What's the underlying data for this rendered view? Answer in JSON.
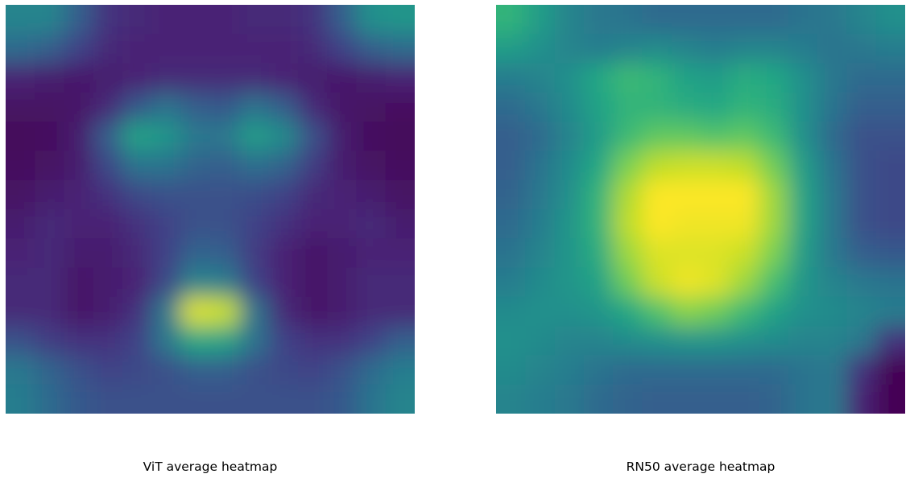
{
  "chart_data": [
    {
      "type": "heatmap",
      "title": "ViT average heatmap",
      "colormap": "viridis",
      "grid": false,
      "axes": "off",
      "rows": 14,
      "cols": 14,
      "values": [
        [
          0.45,
          0.45,
          0.3,
          0.15,
          0.12,
          0.1,
          0.1,
          0.1,
          0.12,
          0.12,
          0.15,
          0.3,
          0.5,
          0.52
        ],
        [
          0.35,
          0.3,
          0.2,
          0.12,
          0.1,
          0.1,
          0.1,
          0.1,
          0.1,
          0.1,
          0.12,
          0.2,
          0.3,
          0.35
        ],
        [
          0.1,
          0.08,
          0.07,
          0.08,
          0.1,
          0.12,
          0.12,
          0.12,
          0.12,
          0.1,
          0.08,
          0.07,
          0.08,
          0.1
        ],
        [
          0.05,
          0.05,
          0.06,
          0.12,
          0.28,
          0.38,
          0.3,
          0.28,
          0.38,
          0.3,
          0.12,
          0.06,
          0.05,
          0.04
        ],
        [
          0.02,
          0.03,
          0.08,
          0.3,
          0.58,
          0.52,
          0.4,
          0.4,
          0.55,
          0.48,
          0.25,
          0.08,
          0.03,
          0.02
        ],
        [
          0.03,
          0.05,
          0.08,
          0.22,
          0.38,
          0.38,
          0.32,
          0.3,
          0.36,
          0.32,
          0.18,
          0.08,
          0.05,
          0.03
        ],
        [
          0.05,
          0.08,
          0.1,
          0.15,
          0.22,
          0.25,
          0.25,
          0.25,
          0.24,
          0.2,
          0.12,
          0.1,
          0.08,
          0.05
        ],
        [
          0.08,
          0.12,
          0.1,
          0.1,
          0.15,
          0.2,
          0.25,
          0.25,
          0.2,
          0.15,
          0.1,
          0.1,
          0.12,
          0.08
        ],
        [
          0.1,
          0.12,
          0.08,
          0.08,
          0.12,
          0.2,
          0.32,
          0.3,
          0.18,
          0.1,
          0.06,
          0.08,
          0.1,
          0.1
        ],
        [
          0.12,
          0.12,
          0.06,
          0.08,
          0.1,
          0.22,
          0.45,
          0.42,
          0.2,
          0.1,
          0.06,
          0.08,
          0.12,
          0.12
        ],
        [
          0.12,
          0.12,
          0.06,
          0.08,
          0.15,
          0.4,
          0.95,
          0.92,
          0.38,
          0.12,
          0.06,
          0.08,
          0.12,
          0.12
        ],
        [
          0.25,
          0.18,
          0.15,
          0.15,
          0.2,
          0.4,
          0.6,
          0.58,
          0.38,
          0.2,
          0.15,
          0.15,
          0.2,
          0.3
        ],
        [
          0.4,
          0.32,
          0.25,
          0.2,
          0.22,
          0.25,
          0.3,
          0.3,
          0.25,
          0.22,
          0.2,
          0.25,
          0.35,
          0.42
        ],
        [
          0.42,
          0.35,
          0.28,
          0.25,
          0.25,
          0.25,
          0.25,
          0.25,
          0.25,
          0.25,
          0.25,
          0.28,
          0.38,
          0.45
        ]
      ]
    },
    {
      "type": "heatmap",
      "title": "RN50 average heatmap",
      "colormap": "viridis",
      "grid": false,
      "axes": "off",
      "rows": 14,
      "cols": 14,
      "values": [
        [
          0.65,
          0.55,
          0.45,
          0.4,
          0.38,
          0.35,
          0.35,
          0.35,
          0.35,
          0.35,
          0.38,
          0.4,
          0.45,
          0.5
        ],
        [
          0.55,
          0.5,
          0.45,
          0.42,
          0.45,
          0.48,
          0.45,
          0.42,
          0.45,
          0.45,
          0.42,
          0.38,
          0.4,
          0.42
        ],
        [
          0.42,
          0.45,
          0.5,
          0.6,
          0.68,
          0.65,
          0.58,
          0.55,
          0.62,
          0.6,
          0.5,
          0.4,
          0.35,
          0.35
        ],
        [
          0.35,
          0.4,
          0.48,
          0.58,
          0.65,
          0.65,
          0.62,
          0.6,
          0.65,
          0.62,
          0.5,
          0.38,
          0.3,
          0.3
        ],
        [
          0.3,
          0.35,
          0.45,
          0.55,
          0.68,
          0.75,
          0.75,
          0.72,
          0.75,
          0.68,
          0.5,
          0.35,
          0.25,
          0.25
        ],
        [
          0.3,
          0.38,
          0.48,
          0.6,
          0.8,
          0.9,
          0.92,
          0.92,
          0.9,
          0.78,
          0.55,
          0.38,
          0.25,
          0.22
        ],
        [
          0.32,
          0.4,
          0.5,
          0.65,
          0.88,
          1.0,
          1.0,
          1.0,
          1.0,
          0.85,
          0.58,
          0.4,
          0.25,
          0.22
        ],
        [
          0.35,
          0.42,
          0.52,
          0.65,
          0.9,
          1.0,
          0.98,
          0.98,
          0.98,
          0.85,
          0.58,
          0.4,
          0.25,
          0.22
        ],
        [
          0.38,
          0.45,
          0.52,
          0.62,
          0.85,
          0.95,
          0.95,
          0.95,
          0.92,
          0.8,
          0.55,
          0.4,
          0.3,
          0.28
        ],
        [
          0.42,
          0.48,
          0.52,
          0.58,
          0.78,
          0.92,
          0.98,
          0.95,
          0.85,
          0.7,
          0.52,
          0.45,
          0.4,
          0.38
        ],
        [
          0.48,
          0.5,
          0.5,
          0.52,
          0.6,
          0.72,
          0.82,
          0.78,
          0.68,
          0.58,
          0.5,
          0.48,
          0.45,
          0.42
        ],
        [
          0.5,
          0.48,
          0.45,
          0.45,
          0.48,
          0.5,
          0.52,
          0.52,
          0.5,
          0.48,
          0.45,
          0.45,
          0.4,
          0.15
        ],
        [
          0.48,
          0.45,
          0.42,
          0.38,
          0.35,
          0.35,
          0.35,
          0.35,
          0.35,
          0.35,
          0.38,
          0.4,
          0.15,
          0.0
        ],
        [
          0.45,
          0.42,
          0.4,
          0.35,
          0.32,
          0.3,
          0.3,
          0.3,
          0.3,
          0.32,
          0.38,
          0.4,
          0.1,
          0.0
        ]
      ]
    }
  ]
}
